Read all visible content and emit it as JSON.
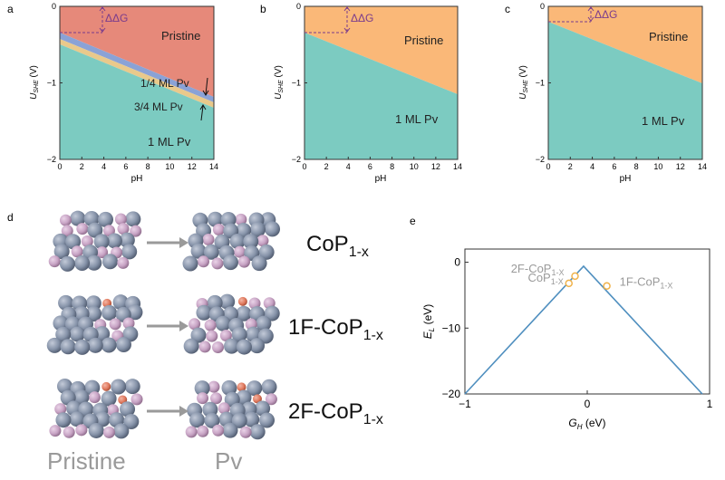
{
  "colors": {
    "pristine_a": "#e6897a",
    "pristine_bc": "#fab878",
    "ml1": "#7ccbc1",
    "quarter_ml": "#8aa2d6",
    "three_quarter_ml": "#e9c98b",
    "annotation": "#7b3c8c",
    "atom_co": "#8592a8",
    "atom_p": "#c7a3c4",
    "atom_f": "#e07a5f",
    "curve": "#4f8fbf",
    "marker": "#f0b24a",
    "gray_text": "#9a9a9a"
  },
  "panels_top": [
    {
      "letter": "a",
      "ylabel": "U",
      "ylabel_sub": "SHE",
      "ylabel_unit": " (V)",
      "xlabel": "pH",
      "xticks": [
        "0",
        "2",
        "4",
        "6",
        "8",
        "10",
        "12",
        "14"
      ],
      "yticks": [
        "0",
        "−1",
        "−2"
      ],
      "ddg": "ΔΔG",
      "regions": [
        "Pristine",
        "1/4 ML Pv",
        "3/4 ML Pv",
        "1 ML Pv"
      ]
    },
    {
      "letter": "b",
      "ylabel": "U",
      "ylabel_sub": "SHE",
      "ylabel_unit": " (V)",
      "xlabel": "pH",
      "xticks": [
        "0",
        "2",
        "4",
        "6",
        "8",
        "10",
        "12",
        "14"
      ],
      "yticks": [
        "0",
        "−1",
        "−2"
      ],
      "ddg": "ΔΔG",
      "regions": [
        "Pristine",
        "1 ML Pv"
      ]
    },
    {
      "letter": "c",
      "ylabel": "U",
      "ylabel_sub": "SHE",
      "ylabel_unit": " (V)",
      "xlabel": "pH",
      "xticks": [
        "0",
        "2",
        "4",
        "6",
        "8",
        "10",
        "12",
        "14"
      ],
      "yticks": [
        "0",
        "−1",
        "−2"
      ],
      "ddg": "ΔΔG",
      "regions": [
        "Pristine",
        "1 ML Pv"
      ]
    }
  ],
  "panel_d": {
    "letter": "d",
    "rows": [
      {
        "name_main": "CoP",
        "name_sub": "1-x"
      },
      {
        "name_main": "1F-CoP",
        "name_sub": "1-x"
      },
      {
        "name_main": "2F-CoP",
        "name_sub": "1-x"
      }
    ],
    "col_left": "Pristine",
    "col_right": "Pv"
  },
  "chart_data": {
    "type": "line",
    "panel": "e",
    "title": "",
    "xlabel": "G",
    "xlabel_sub": "H",
    "xlabel_unit": " (eV)",
    "ylabel": "E",
    "ylabel_sub": "L",
    "ylabel_unit": " (eV)",
    "xlim": [
      -1,
      1
    ],
    "ylim": [
      -20,
      2
    ],
    "xticks": [
      "−1",
      "0",
      "1"
    ],
    "yticks": [
      "0",
      "−10",
      "−20"
    ],
    "series": [
      {
        "x": [
          -1.0,
          -0.03,
          0.94
        ],
        "y": [
          -20.0,
          -0.6,
          -20.0
        ]
      }
    ],
    "points": [
      {
        "label_main": "CoP",
        "label_sub": "1-X",
        "x": -0.15,
        "y": -3.2
      },
      {
        "label_main": "2F-CoP",
        "label_sub": "1-X",
        "x": -0.1,
        "y": -2.1
      },
      {
        "label_main": "1F-CoP",
        "label_sub": "1-X",
        "x": 0.16,
        "y": -3.6
      }
    ]
  }
}
